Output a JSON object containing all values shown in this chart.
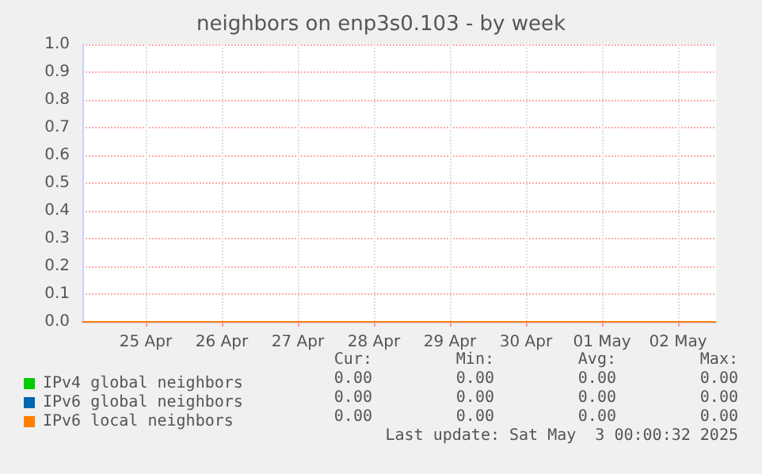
{
  "chart_data": {
    "type": "line",
    "title": "neighbors on enp3s0.103 - by week",
    "xlim": [
      "2025-04-24T16:00",
      "2025-05-03T00:00"
    ],
    "xticks": [
      {
        "value": "2025-04-25T12:00",
        "label": "25 Apr"
      },
      {
        "value": "2025-04-26T12:00",
        "label": "26 Apr"
      },
      {
        "value": "2025-04-27T12:00",
        "label": "27 Apr"
      },
      {
        "value": "2025-04-28T12:00",
        "label": "28 Apr"
      },
      {
        "value": "2025-04-29T12:00",
        "label": "29 Apr"
      },
      {
        "value": "2025-04-30T12:00",
        "label": "30 Apr"
      },
      {
        "value": "2025-05-01T12:00",
        "label": "01 May"
      },
      {
        "value": "2025-05-02T12:00",
        "label": "02 May"
      }
    ],
    "ylim": [
      0,
      1
    ],
    "yticks": [
      {
        "value": 0,
        "label": "0.0"
      },
      0.1,
      0.2,
      0.3,
      0.4,
      0.5,
      0.6,
      0.7,
      0.8,
      0.9,
      {
        "value": 1,
        "label": "1.0"
      }
    ],
    "grid": true,
    "legend": "bottom left",
    "marker": "none",
    "line_style": "solid",
    "series": [
      {
        "name": "IPv4 global neighbors",
        "color": "#00cc00"
      },
      {
        "name": "IPv6 global neighbors",
        "color": "#0066b3"
      },
      {
        "name": "IPv6 local neighbors",
        "color": "#ff8000",
        "x": [
          "2025-04-24T16:00",
          "2025-05-03T00:00"
        ],
        "values": [
          0,
          0
        ]
      }
    ],
    "annotations": [
      "Cur:",
      "Min:",
      "Avg:",
      "Max:",
      "0.00",
      "0.00",
      "0.00",
      "0.00",
      "0.00",
      "0.00",
      "0.00",
      "0.00",
      "0.00",
      "0.00",
      "0.00",
      "0.00",
      "Last update: Sat May  3 00:00:32 2025"
    ]
  }
}
